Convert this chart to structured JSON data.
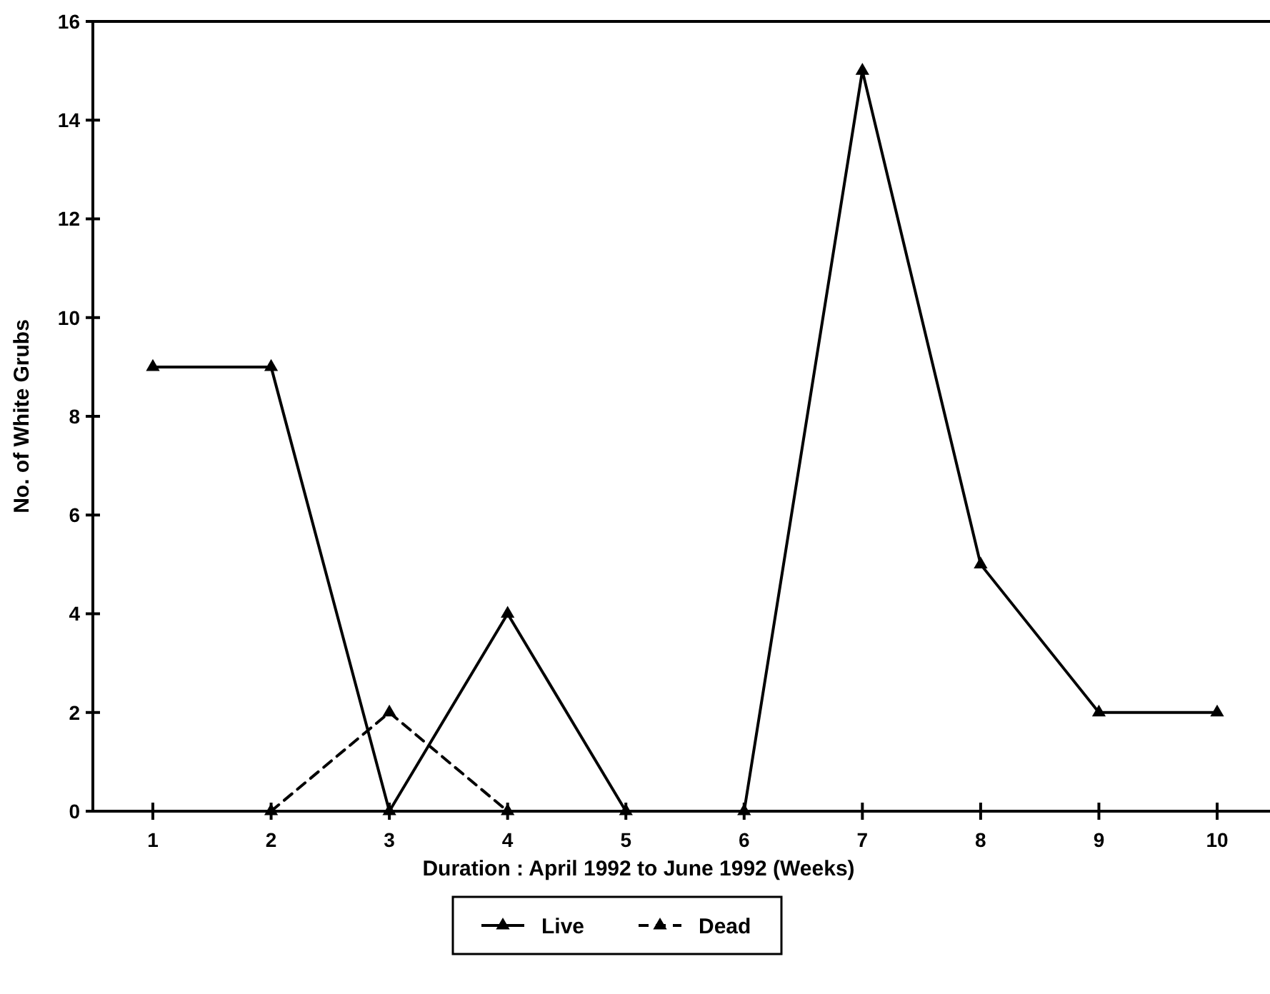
{
  "chart_data": {
    "type": "line",
    "xlabel": "Duration : April 1992 to June 1992 (Weeks)",
    "ylabel": "No. of White Grubs",
    "categories": [
      "1",
      "2",
      "3",
      "4",
      "5",
      "6",
      "7",
      "8",
      "9",
      "10"
    ],
    "series": [
      {
        "name": "Live",
        "color": "#000000",
        "line_style": "solid",
        "values": [
          9,
          9,
          0,
          4,
          0,
          0,
          15,
          5,
          2,
          2
        ]
      },
      {
        "name": "Dead",
        "color": "#000000",
        "line_style": "dashed",
        "values": [
          null,
          0,
          2,
          0,
          null,
          null,
          null,
          null,
          null,
          null
        ]
      }
    ],
    "ylim": [
      0,
      16
    ],
    "yticks": [
      0,
      2,
      4,
      6,
      8,
      10,
      12,
      14,
      16
    ],
    "grid": false,
    "legend": "bottom",
    "marker": "triangle"
  }
}
